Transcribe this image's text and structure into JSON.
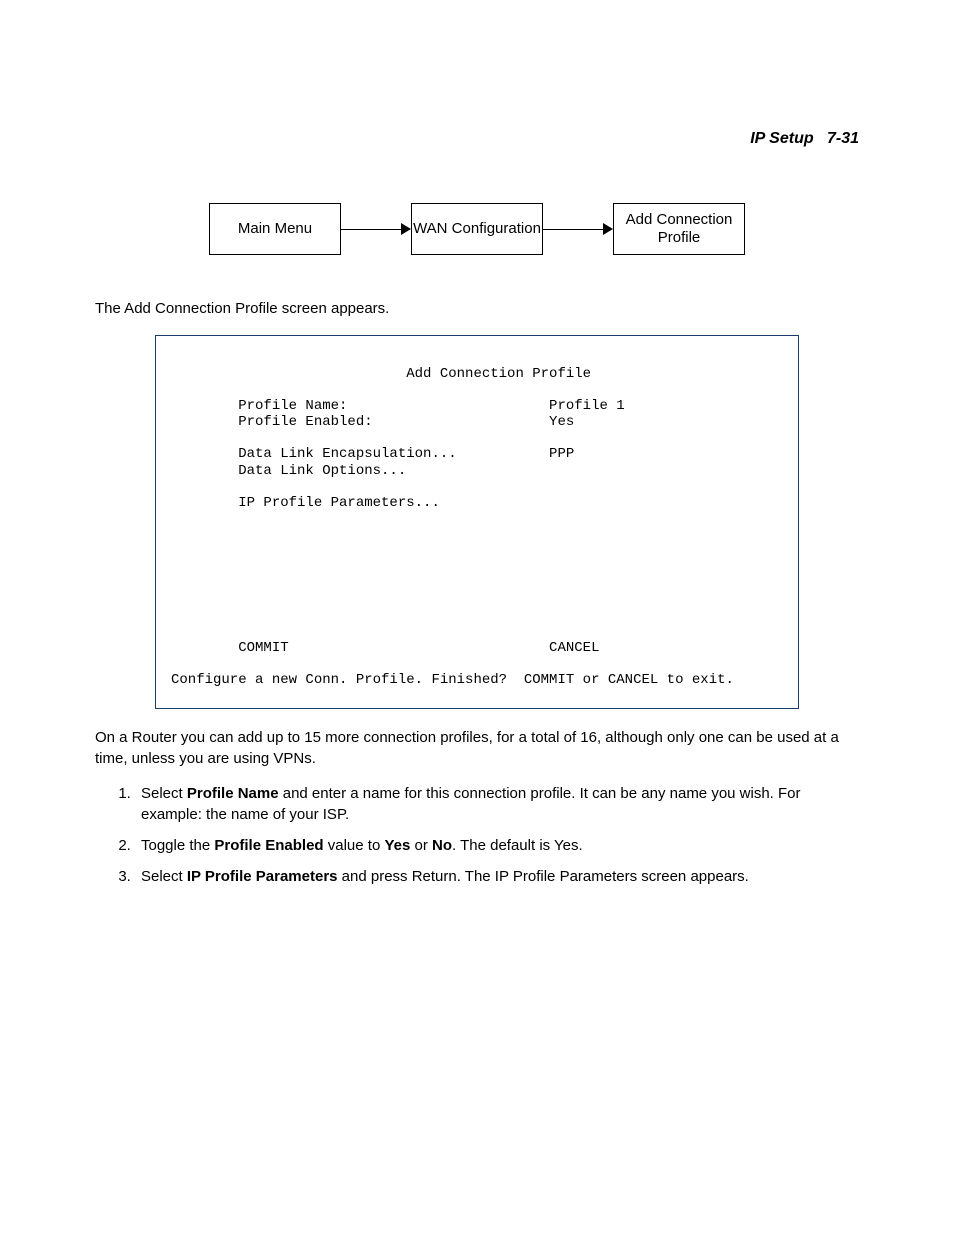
{
  "header": {
    "section": "IP Setup",
    "page": "7-31"
  },
  "flowchart": {
    "boxes": [
      "Main Menu",
      "WAN Configuration",
      "Add Connection Profile"
    ]
  },
  "intro": "The Add Connection Profile screen appears.",
  "terminal": {
    "title": "Add Connection Profile",
    "rows": [
      {
        "label": "Profile Name:",
        "value": "Profile 1"
      },
      {
        "label": "Profile Enabled:",
        "value": "Yes"
      },
      {
        "label": "",
        "value": ""
      },
      {
        "label": "Data Link Encapsulation...",
        "value": "PPP"
      },
      {
        "label": "Data Link Options...",
        "value": ""
      },
      {
        "label": "",
        "value": ""
      },
      {
        "label": "IP Profile Parameters...",
        "value": ""
      }
    ],
    "commit": "COMMIT",
    "cancel": "CANCEL",
    "footer": "Configure a new Conn. Profile. Finished?  COMMIT or CANCEL to exit."
  },
  "paragraph": "On a Router you can add up to 15 more connection profiles, for a total of 16, although only one can be used at a time, unless you are using VPNs.",
  "steps": {
    "1": {
      "pre": "Select ",
      "b1": "Profile Name",
      "post": " and enter a name for this connection profile. It can be any name you wish. For example: the name of your ISP."
    },
    "2": {
      "pre": "Toggle the ",
      "b1": "Profile Enabled",
      "mid1": " value to ",
      "b2": "Yes",
      "mid2": " or ",
      "b3": "No",
      "post": ". The default is Yes."
    },
    "3": {
      "pre": "Select ",
      "b1": "IP Profile Parameters",
      "post": " and press Return. The IP Profile Parameters screen appears."
    }
  }
}
